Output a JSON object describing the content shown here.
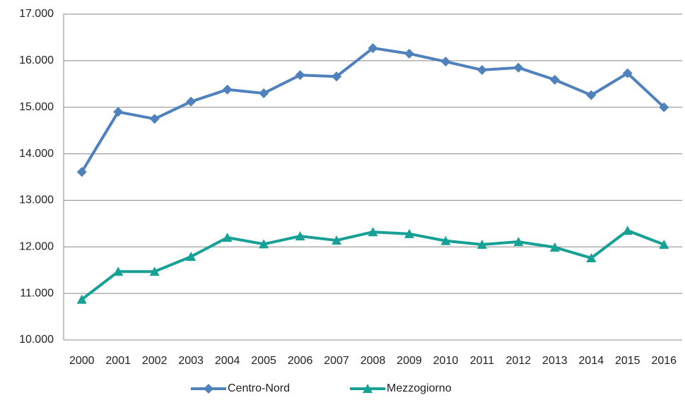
{
  "chart_data": {
    "type": "line",
    "categories": [
      "2000",
      "2001",
      "2002",
      "2003",
      "2004",
      "2005",
      "2006",
      "2007",
      "2008",
      "2009",
      "2010",
      "2011",
      "2012",
      "2013",
      "2014",
      "2015",
      "2016"
    ],
    "series": [
      {
        "name": "Centro-Nord",
        "color": "#4f81bd",
        "marker": "diamond",
        "values": [
          13610,
          14900,
          14750,
          15120,
          15380,
          15300,
          15690,
          15660,
          16270,
          16150,
          15980,
          15800,
          15850,
          15590,
          15260,
          15730,
          15000
        ]
      },
      {
        "name": "Mezzogiorno",
        "color": "#17a096",
        "marker": "triangle",
        "values": [
          10870,
          11470,
          11470,
          11790,
          12200,
          12060,
          12230,
          12140,
          12320,
          12280,
          12130,
          12050,
          12110,
          11990,
          11760,
          12350,
          12050
        ]
      }
    ],
    "ylim": [
      10000,
      17000
    ],
    "yticks": [
      {
        "value": 10000,
        "label": "10.000"
      },
      {
        "value": 11000,
        "label": "11.000"
      },
      {
        "value": 12000,
        "label": "12.000"
      },
      {
        "value": 13000,
        "label": "13.000"
      },
      {
        "value": 14000,
        "label": "14.000"
      },
      {
        "value": 15000,
        "label": "15.000"
      },
      {
        "value": 16000,
        "label": "16.000"
      },
      {
        "value": 17000,
        "label": "17.000"
      }
    ],
    "grid": true,
    "legend": "bottom"
  }
}
